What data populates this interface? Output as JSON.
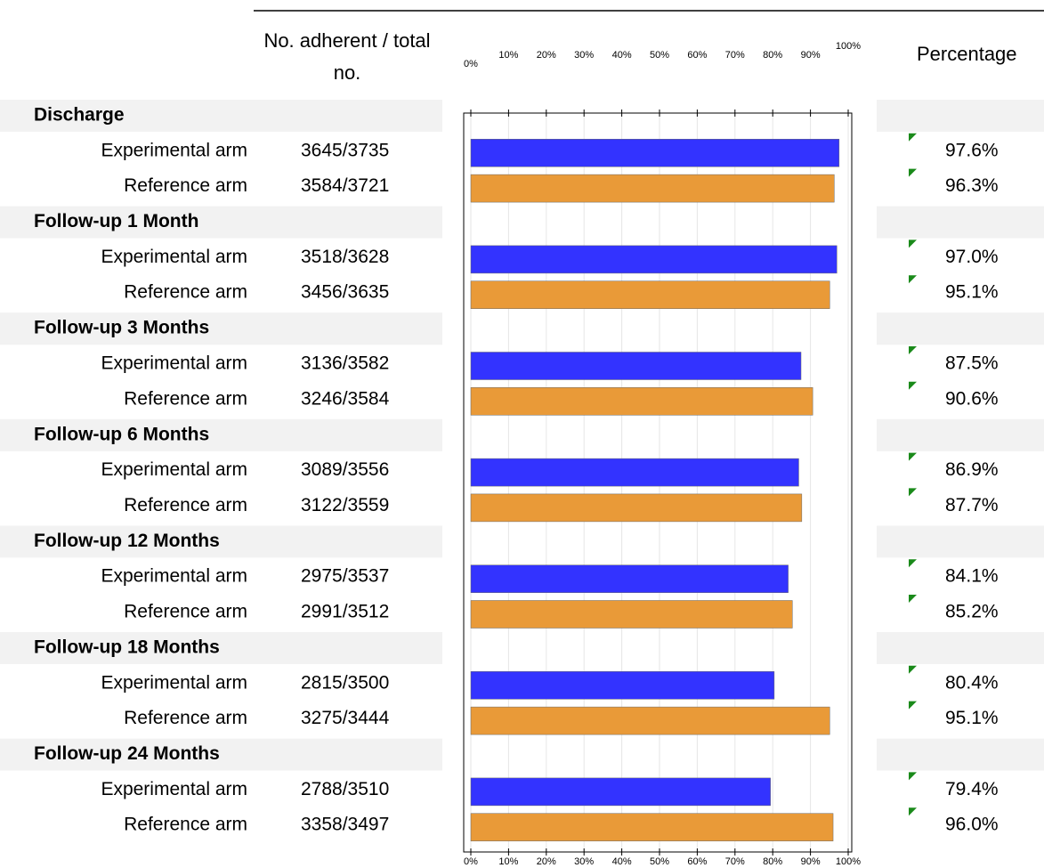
{
  "chart_data": {
    "type": "bar",
    "orientation": "horizontal",
    "count_header": "No. adherent / total no.",
    "value_header": "Percentage",
    "categories": [
      "Discharge",
      "Follow-up 1 Month",
      "Follow-up 3 Months",
      "Follow-up 6 Months",
      "Follow-up 12 Months",
      "Follow-up 18 Months",
      "Follow-up 24 Months"
    ],
    "series": [
      {
        "name": "Experimental arm",
        "color": "#3333ff",
        "counts": [
          "3645/3735",
          "3518/3628",
          "3136/3582",
          "3089/3556",
          "2975/3537",
          "2815/3500",
          "2788/3510"
        ],
        "values": [
          97.6,
          97.0,
          87.5,
          86.9,
          84.1,
          80.4,
          79.4
        ],
        "value_labels": [
          "97.6%",
          "97.0%",
          "87.5%",
          "86.9%",
          "84.1%",
          "80.4%",
          "79.4%"
        ]
      },
      {
        "name": "Reference arm",
        "color": "#e99a38",
        "counts": [
          "3584/3721",
          "3456/3635",
          "3246/3584",
          "3122/3559",
          "2991/3512",
          "3275/3444",
          "3358/3497"
        ],
        "values": [
          96.3,
          95.1,
          90.6,
          87.7,
          85.2,
          95.1,
          96.0
        ],
        "value_labels": [
          "96.3%",
          "95.1%",
          "90.6%",
          "87.7%",
          "85.2%",
          "95.1%",
          "96.0%"
        ]
      }
    ],
    "xlim": [
      0,
      100
    ],
    "xticks": [
      {
        "value": 0,
        "label": "0%"
      },
      {
        "value": 10,
        "label": "10%"
      },
      {
        "value": 20,
        "label": "20%"
      },
      {
        "value": 30,
        "label": "30%"
      },
      {
        "value": 40,
        "label": "40%"
      },
      {
        "value": 50,
        "label": "50%"
      },
      {
        "value": 60,
        "label": "60%"
      },
      {
        "value": 70,
        "label": "70%"
      },
      {
        "value": 80,
        "label": "80%"
      },
      {
        "value": 90,
        "label": "90%"
      },
      {
        "value": 100,
        "label": "100%"
      }
    ],
    "grid": true
  }
}
